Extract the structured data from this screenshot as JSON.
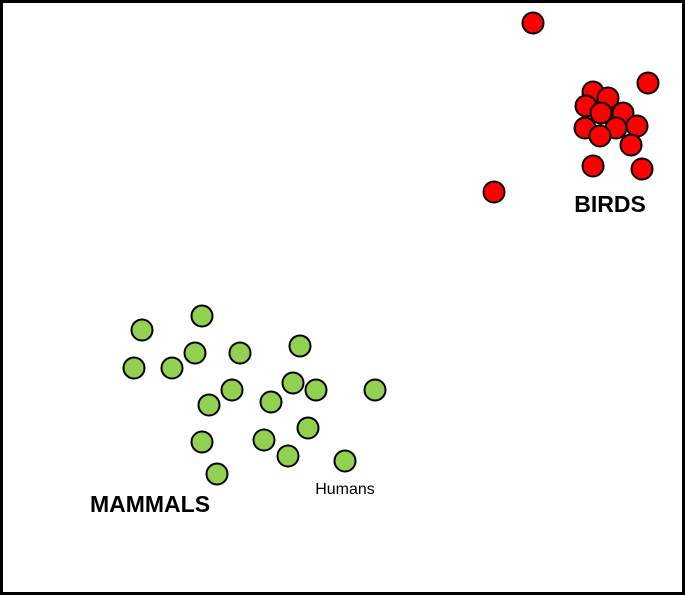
{
  "clusters": {
    "birds": {
      "label": "BIRDS"
    },
    "mammals": {
      "label": "MAMMALS"
    }
  },
  "annotation": "Humans"
}
